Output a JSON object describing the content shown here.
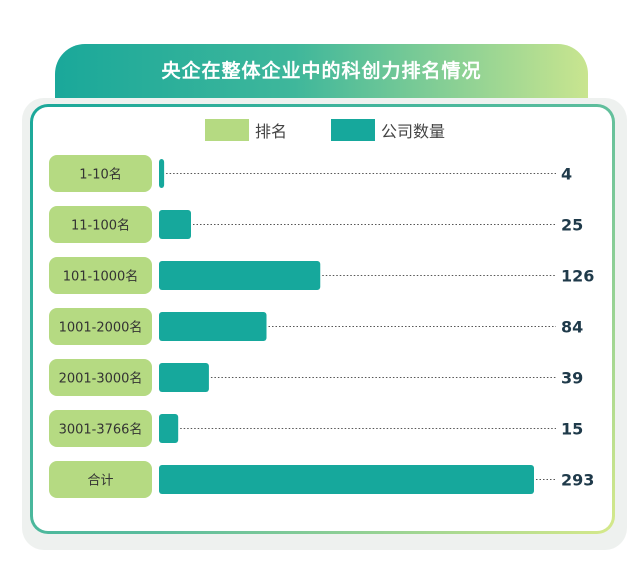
{
  "header": {
    "title": "央企在整体企业中的科创力排名情况"
  },
  "legend": {
    "rank_label": "排名",
    "count_label": "公司数量",
    "rank_color": "#b5da82",
    "count_color": "#16a89c"
  },
  "chart_data": {
    "type": "bar",
    "orientation": "horizontal",
    "categories": [
      "1-10名",
      "11-100名",
      "101-1000名",
      "1001-2000名",
      "2001-3000名",
      "3001-3766名",
      "合计"
    ],
    "series": [
      {
        "name": "公司数量",
        "values": [
          4,
          25,
          126,
          84,
          39,
          15,
          293
        ]
      }
    ],
    "data_labels": [
      "4",
      "25",
      "126",
      "84",
      "39",
      "15",
      "293"
    ],
    "title": "央企在整体企业中的科创力排名情况",
    "xlabel": "",
    "ylabel": "",
    "xlim": [
      0,
      293
    ],
    "grid": false,
    "legend_position": "top",
    "colors": {
      "bar": "#16a89c",
      "category_box": "#b5da82",
      "value_text": "#1f3a4a"
    }
  }
}
